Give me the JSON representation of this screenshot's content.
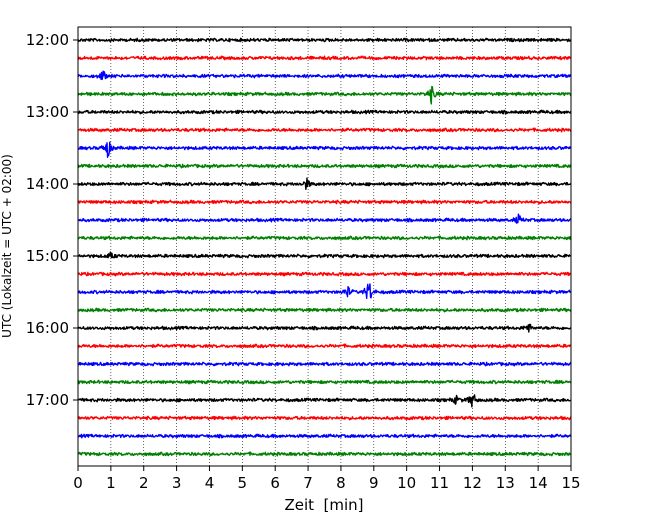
{
  "chart_data": {
    "type": "line",
    "title": "",
    "xlabel": "Zeit  [min]",
    "ylabel": "UTC (Lokalzeit = UTC + 02:00)",
    "xlim": [
      0,
      15
    ],
    "x_ticks": [
      0,
      1,
      2,
      3,
      4,
      5,
      6,
      7,
      8,
      9,
      10,
      11,
      12,
      13,
      14,
      15
    ],
    "x_tick_labels": [
      "0",
      "1",
      "2",
      "3",
      "4",
      "5",
      "6",
      "7",
      "8",
      "9",
      "10",
      "11",
      "12",
      "13",
      "14",
      "15"
    ],
    "y_tick_labels": [
      "12:00",
      "13:00",
      "14:00",
      "15:00",
      "16:00",
      "17:00"
    ],
    "grid": "vertical dotted",
    "trace_colors": [
      "#000000",
      "#ff0000",
      "#0000ff",
      "#008000"
    ],
    "series": [
      {
        "start": "12:00",
        "events": []
      },
      {
        "start": "12:15",
        "events": []
      },
      {
        "start": "12:30",
        "events": [
          {
            "x": 0.75,
            "amplitude": 0.35
          }
        ]
      },
      {
        "start": "12:45",
        "events": [
          {
            "x": 10.75,
            "amplitude": 0.55
          }
        ]
      },
      {
        "start": "13:00",
        "events": []
      },
      {
        "start": "13:15",
        "events": []
      },
      {
        "start": "13:30",
        "events": [
          {
            "x": 0.9,
            "amplitude": 0.65
          }
        ]
      },
      {
        "start": "13:45",
        "events": []
      },
      {
        "start": "14:00",
        "events": [
          {
            "x": 6.95,
            "amplitude": 0.35
          }
        ]
      },
      {
        "start": "14:15",
        "events": []
      },
      {
        "start": "14:30",
        "events": [
          {
            "x": 13.4,
            "amplitude": 0.3
          }
        ]
      },
      {
        "start": "14:45",
        "events": []
      },
      {
        "start": "15:00",
        "events": [
          {
            "x": 1.0,
            "amplitude": 0.2
          }
        ]
      },
      {
        "start": "15:15",
        "events": []
      },
      {
        "start": "15:30",
        "events": [
          {
            "x": 8.2,
            "amplitude": 0.35
          },
          {
            "x": 8.85,
            "amplitude": 0.85
          }
        ]
      },
      {
        "start": "15:45",
        "events": []
      },
      {
        "start": "16:00",
        "events": [
          {
            "x": 13.7,
            "amplitude": 0.3
          }
        ]
      },
      {
        "start": "16:15",
        "events": []
      },
      {
        "start": "16:30",
        "events": []
      },
      {
        "start": "16:45",
        "events": []
      },
      {
        "start": "17:00",
        "events": [
          {
            "x": 11.5,
            "amplitude": 0.25
          },
          {
            "x": 12.0,
            "amplitude": 0.55
          }
        ]
      },
      {
        "start": "17:15",
        "events": []
      },
      {
        "start": "17:30",
        "events": []
      },
      {
        "start": "17:45",
        "events": []
      }
    ]
  }
}
